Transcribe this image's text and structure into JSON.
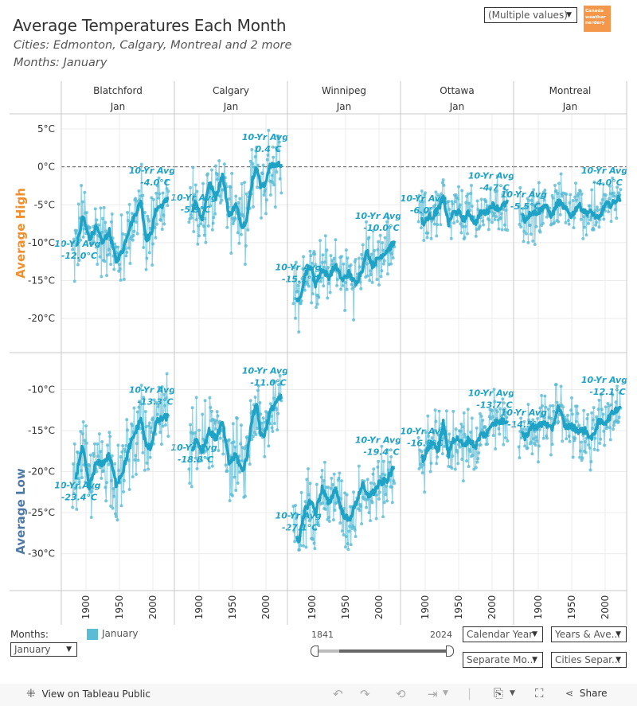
{
  "header": {
    "title": "Average Temperatures Each Month",
    "subtitle_cities": "Cities: Edmonton, Calgary, Montreal and 2 more",
    "subtitle_months": "Months: January",
    "city_filter": "(Multiple values)",
    "logo_text": [
      "Canada",
      "weather",
      "nerdery"
    ]
  },
  "colors": {
    "series": "#5bbcd6",
    "smooth": "#1ea2c5",
    "label": "#1ea2c5",
    "avg_high_label": "#f28e2b",
    "avg_low_label": "#4e79a7",
    "logo_bg": "#f4974a"
  },
  "chart_data": {
    "type": "line",
    "title": "Average Temperatures Each Month",
    "columns": [
      {
        "city": "Blatchford",
        "month": "Jan"
      },
      {
        "city": "Calgary",
        "month": "Jan"
      },
      {
        "city": "Winnipeg",
        "month": "Jan"
      },
      {
        "city": "Ottawa",
        "month": "Jan"
      },
      {
        "city": "Montreal",
        "month": "Jan"
      }
    ],
    "x_ticks": [
      1900,
      1950,
      2000
    ],
    "xlim": [
      1863,
      2030
    ],
    "rows": [
      {
        "label": "Average High",
        "ylim": [
          -24.5,
          7
        ],
        "y_ticks": [
          5,
          0,
          -5,
          -10,
          -15,
          -20
        ],
        "y_tick_labels": [
          "5°C",
          "0°C",
          "-5°C",
          "-10°C",
          "-15°C",
          "-20°C"
        ],
        "reference_line": 0,
        "panels": [
          {
            "city": "Blatchford",
            "start_year": 1880,
            "end_year": 2023,
            "first_avg_label": "10-Yr Avg",
            "first_avg": "-12.0°C",
            "last_avg_label": "10-Yr Avg",
            "last_avg": "-4.0°C",
            "first_avg_value": -12.0,
            "last_avg_value": -4.0,
            "smooth_keypoints": [
              [
                1880,
                -12
              ],
              [
                1890,
                -9
              ],
              [
                1895,
                -6.5
              ],
              [
                1905,
                -9.5
              ],
              [
                1915,
                -8
              ],
              [
                1925,
                -10
              ],
              [
                1935,
                -8.5
              ],
              [
                1945,
                -12.5
              ],
              [
                1955,
                -11
              ],
              [
                1965,
                -8
              ],
              [
                1975,
                -6
              ],
              [
                1982,
                -4.5
              ],
              [
                1990,
                -9.5
              ],
              [
                1997,
                -9
              ],
              [
                2005,
                -5.5
              ],
              [
                2015,
                -5
              ],
              [
                2023,
                -4
              ]
            ],
            "spread": 5.5
          },
          {
            "city": "Calgary",
            "start_year": 1885,
            "end_year": 2023,
            "first_avg_label": "10-Yr Avg",
            "first_avg": "-5.9°C",
            "last_avg_label": "10-Yr Avg",
            "last_avg": "0.4°C",
            "first_avg_value": -5.9,
            "last_avg_value": 0.4,
            "smooth_keypoints": [
              [
                1885,
                -7
              ],
              [
                1895,
                -4.5
              ],
              [
                1905,
                -7
              ],
              [
                1915,
                -2
              ],
              [
                1925,
                -4
              ],
              [
                1935,
                -1
              ],
              [
                1945,
                -6.5
              ],
              [
                1955,
                -5
              ],
              [
                1965,
                -8
              ],
              [
                1972,
                -6.5
              ],
              [
                1980,
                -1.5
              ],
              [
                1987,
                0
              ],
              [
                1992,
                -2.5
              ],
              [
                1998,
                -2.5
              ],
              [
                2005,
                0
              ],
              [
                2015,
                0.3
              ],
              [
                2023,
                0.4
              ]
            ],
            "spread": 5
          },
          {
            "city": "Winnipeg",
            "start_year": 1872,
            "end_year": 2023,
            "first_avg_label": "10-Yr Avg",
            "first_avg": "-15.1°C",
            "last_avg_label": "10-Yr Avg",
            "last_avg": "-10.0°C",
            "first_avg_value": -15.1,
            "last_avg_value": -10.0,
            "smooth_keypoints": [
              [
                1872,
                -16
              ],
              [
                1880,
                -18
              ],
              [
                1890,
                -14
              ],
              [
                1898,
                -13
              ],
              [
                1905,
                -15.5
              ],
              [
                1915,
                -13.5
              ],
              [
                1925,
                -14.5
              ],
              [
                1935,
                -13
              ],
              [
                1945,
                -15
              ],
              [
                1955,
                -14
              ],
              [
                1965,
                -15.5
              ],
              [
                1975,
                -13.5
              ],
              [
                1982,
                -11
              ],
              [
                1990,
                -13
              ],
              [
                2000,
                -12
              ],
              [
                2012,
                -11
              ],
              [
                2023,
                -10
              ]
            ],
            "spread": 4.5
          },
          {
            "city": "Ottawa",
            "start_year": 1890,
            "end_year": 2023,
            "first_avg_label": "10-Yr Avg",
            "first_avg": "-6.0°C",
            "last_avg_label": "10-Yr Avg",
            "last_avg": "-4.7°C",
            "first_avg_value": -6.0,
            "last_avg_value": -4.7,
            "smooth_keypoints": [
              [
                1890,
                -6
              ],
              [
                1898,
                -7.5
              ],
              [
                1905,
                -6.5
              ],
              [
                1912,
                -6.5
              ],
              [
                1920,
                -5.5
              ],
              [
                1927,
                -4
              ],
              [
                1935,
                -7.5
              ],
              [
                1942,
                -6
              ],
              [
                1950,
                -6
              ],
              [
                1958,
                -7
              ],
              [
                1965,
                -6
              ],
              [
                1975,
                -7.5
              ],
              [
                1983,
                -6
              ],
              [
                1992,
                -6
              ],
              [
                2000,
                -5
              ],
              [
                2010,
                -5.5
              ],
              [
                2023,
                -4.7
              ]
            ],
            "spread": 4
          },
          {
            "city": "Montreal",
            "start_year": 1871,
            "end_year": 2023,
            "first_avg_label": "10-Yr Avg",
            "first_avg": "-5.5°C",
            "last_avg_label": "10-Yr Avg",
            "last_avg": "-4.0°C",
            "first_avg_value": -5.5,
            "last_avg_value": -4.0,
            "smooth_keypoints": [
              [
                1871,
                -5.5
              ],
              [
                1880,
                -7
              ],
              [
                1890,
                -6
              ],
              [
                1900,
                -6
              ],
              [
                1910,
                -5
              ],
              [
                1920,
                -6.5
              ],
              [
                1930,
                -4.5
              ],
              [
                1940,
                -5.5
              ],
              [
                1950,
                -6.5
              ],
              [
                1960,
                -5
              ],
              [
                1970,
                -6
              ],
              [
                1980,
                -6
              ],
              [
                1990,
                -7
              ],
              [
                2000,
                -5
              ],
              [
                2010,
                -5
              ],
              [
                2015,
                -4.5
              ],
              [
                2023,
                -4
              ]
            ],
            "spread": 4
          }
        ]
      },
      {
        "label": "Average Low",
        "ylim": [
          -34.5,
          -5.5
        ],
        "y_ticks": [
          -10,
          -15,
          -20,
          -25,
          -30
        ],
        "y_tick_labels": [
          "-10°C",
          "-15°C",
          "-20°C",
          "-25°C",
          "-30°C"
        ],
        "reference_line": null,
        "panels": [
          {
            "city": "Blatchford",
            "start_year": 1880,
            "end_year": 2023,
            "first_avg_label": "10-Yr Avg",
            "first_avg": "-23.4°C",
            "last_avg_label": "10-Yr Avg",
            "last_avg": "-13.3°C",
            "first_avg_value": -23.4,
            "last_avg_value": -13.3,
            "smooth_keypoints": [
              [
                1880,
                -23
              ],
              [
                1890,
                -18.5
              ],
              [
                1895,
                -17
              ],
              [
                1905,
                -22
              ],
              [
                1915,
                -19
              ],
              [
                1925,
                -19
              ],
              [
                1935,
                -18
              ],
              [
                1945,
                -21.5
              ],
              [
                1955,
                -20
              ],
              [
                1965,
                -17
              ],
              [
                1975,
                -15
              ],
              [
                1982,
                -13.5
              ],
              [
                1990,
                -17
              ],
              [
                1997,
                -17
              ],
              [
                2005,
                -14
              ],
              [
                2015,
                -13.5
              ],
              [
                2023,
                -13.3
              ]
            ],
            "spread": 5
          },
          {
            "city": "Calgary",
            "start_year": 1885,
            "end_year": 2023,
            "first_avg_label": "10-Yr Avg",
            "first_avg": "-18.8°C",
            "last_avg_label": "10-Yr Avg",
            "last_avg": "-11.0°C",
            "first_avg_value": -18.8,
            "last_avg_value": -11.0,
            "smooth_keypoints": [
              [
                1885,
                -19
              ],
              [
                1895,
                -16
              ],
              [
                1905,
                -17.5
              ],
              [
                1915,
                -15
              ],
              [
                1925,
                -16
              ],
              [
                1935,
                -14
              ],
              [
                1945,
                -19
              ],
              [
                1955,
                -18
              ],
              [
                1965,
                -20
              ],
              [
                1972,
                -18
              ],
              [
                1980,
                -13
              ],
              [
                1987,
                -12
              ],
              [
                1992,
                -15.5
              ],
              [
                1998,
                -15.5
              ],
              [
                2005,
                -13
              ],
              [
                2015,
                -11.5
              ],
              [
                2023,
                -11
              ]
            ],
            "spread": 5
          },
          {
            "city": "Winnipeg",
            "start_year": 1872,
            "end_year": 2023,
            "first_avg_label": "10-Yr Avg",
            "first_avg": "-27.1°C",
            "last_avg_label": "10-Yr Avg",
            "last_avg": "-19.4°C",
            "first_avg_value": -27.1,
            "last_avg_value": -19.4,
            "smooth_keypoints": [
              [
                1872,
                -26.5
              ],
              [
                1880,
                -28.5
              ],
              [
                1890,
                -24.5
              ],
              [
                1898,
                -23.5
              ],
              [
                1905,
                -25
              ],
              [
                1915,
                -22
              ],
              [
                1925,
                -24
              ],
              [
                1935,
                -22
              ],
              [
                1945,
                -25
              ],
              [
                1955,
                -26
              ],
              [
                1965,
                -24
              ],
              [
                1975,
                -21.5
              ],
              [
                1982,
                -23
              ],
              [
                1992,
                -22.5
              ],
              [
                2000,
                -21.5
              ],
              [
                2012,
                -21
              ],
              [
                2023,
                -19.4
              ]
            ],
            "spread": 4.5
          },
          {
            "city": "Ottawa",
            "start_year": 1890,
            "end_year": 2023,
            "first_avg_label": "10-Yr Avg",
            "first_avg": "-16.8°C",
            "last_avg_label": "10-Yr Avg",
            "last_avg": "-13.7°C",
            "first_avg_value": -16.8,
            "last_avg_value": -13.7,
            "smooth_keypoints": [
              [
                1890,
                -18
              ],
              [
                1898,
                -18.5
              ],
              [
                1905,
                -17
              ],
              [
                1912,
                -16.5
              ],
              [
                1920,
                -17.5
              ],
              [
                1927,
                -14
              ],
              [
                1935,
                -18
              ],
              [
                1942,
                -16
              ],
              [
                1950,
                -16
              ],
              [
                1958,
                -17
              ],
              [
                1965,
                -16
              ],
              [
                1975,
                -17
              ],
              [
                1983,
                -15.5
              ],
              [
                1992,
                -15.5
              ],
              [
                2000,
                -14
              ],
              [
                2010,
                -14
              ],
              [
                2023,
                -13.7
              ]
            ],
            "spread": 4
          },
          {
            "city": "Montreal",
            "start_year": 1871,
            "end_year": 2023,
            "first_avg_label": "10-Yr Avg",
            "first_avg": "-14.5°C",
            "last_avg_label": "10-Yr Avg",
            "last_avg": "-12.1°C",
            "first_avg_value": -14.5,
            "last_avg_value": -12.1,
            "smooth_keypoints": [
              [
                1871,
                -14.5
              ],
              [
                1880,
                -16
              ],
              [
                1890,
                -14.5
              ],
              [
                1900,
                -14.5
              ],
              [
                1910,
                -14
              ],
              [
                1920,
                -15
              ],
              [
                1930,
                -12
              ],
              [
                1940,
                -14.5
              ],
              [
                1950,
                -14.5
              ],
              [
                1960,
                -15
              ],
              [
                1970,
                -15
              ],
              [
                1980,
                -16
              ],
              [
                1990,
                -14
              ],
              [
                2000,
                -14
              ],
              [
                2010,
                -13
              ],
              [
                2015,
                -12.5
              ],
              [
                2023,
                -12.1
              ]
            ],
            "spread": 4
          }
        ]
      }
    ],
    "legend": [
      {
        "label": "January",
        "color": "#5bbcd6"
      }
    ]
  },
  "controls": {
    "months_label": "Months:",
    "months_value": "January",
    "legend_label": "January",
    "slider_min": "1841",
    "slider_max": "2024",
    "slider_range": [
      1841,
      2024
    ],
    "slider_selected_start": 1841,
    "slider_selected_end": 2024,
    "dropdowns": [
      "Calendar Year",
      "Years & Ave...",
      "Separate Mo...",
      "Cities Separ..."
    ]
  },
  "toolbar": {
    "view_on": "View on Tableau Public",
    "share": "Share"
  }
}
